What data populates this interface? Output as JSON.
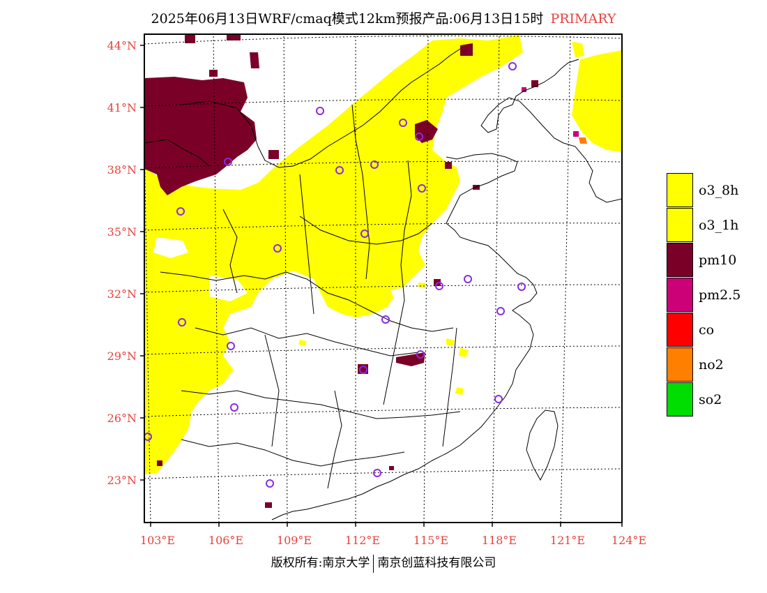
{
  "title": {
    "text": "2025年06月13日WRF/cmaq模式12km预报产品:06月13日15时",
    "tag": "PRIMARY"
  },
  "axes": {
    "lat_labels": [
      "44°N",
      "41°N",
      "38°N",
      "35°N",
      "32°N",
      "29°N",
      "26°N",
      "23°N"
    ],
    "lon_labels": [
      "103°E",
      "106°E",
      "109°E",
      "112°E",
      "115°E",
      "118°E",
      "121°E",
      "124°E"
    ]
  },
  "legend": {
    "items": [
      {
        "label": "o3_8h",
        "color": "#ffff00"
      },
      {
        "label": "o3_1h",
        "color": "#ffff00"
      },
      {
        "label": "pm10",
        "color": "#7a0028"
      },
      {
        "label": "pm2.5",
        "color": "#cc0077"
      },
      {
        "label": "co",
        "color": "#ff0000"
      },
      {
        "label": "no2",
        "color": "#ff7f00"
      },
      {
        "label": "so2",
        "color": "#00dd00"
      }
    ]
  },
  "colors": {
    "axis_label": "#e8413c",
    "station_marker": "#8a2be2",
    "coast": "#000000"
  },
  "footer": {
    "left": "版权所有:南京大学",
    "right": "南京创蓝科技有限公司"
  }
}
